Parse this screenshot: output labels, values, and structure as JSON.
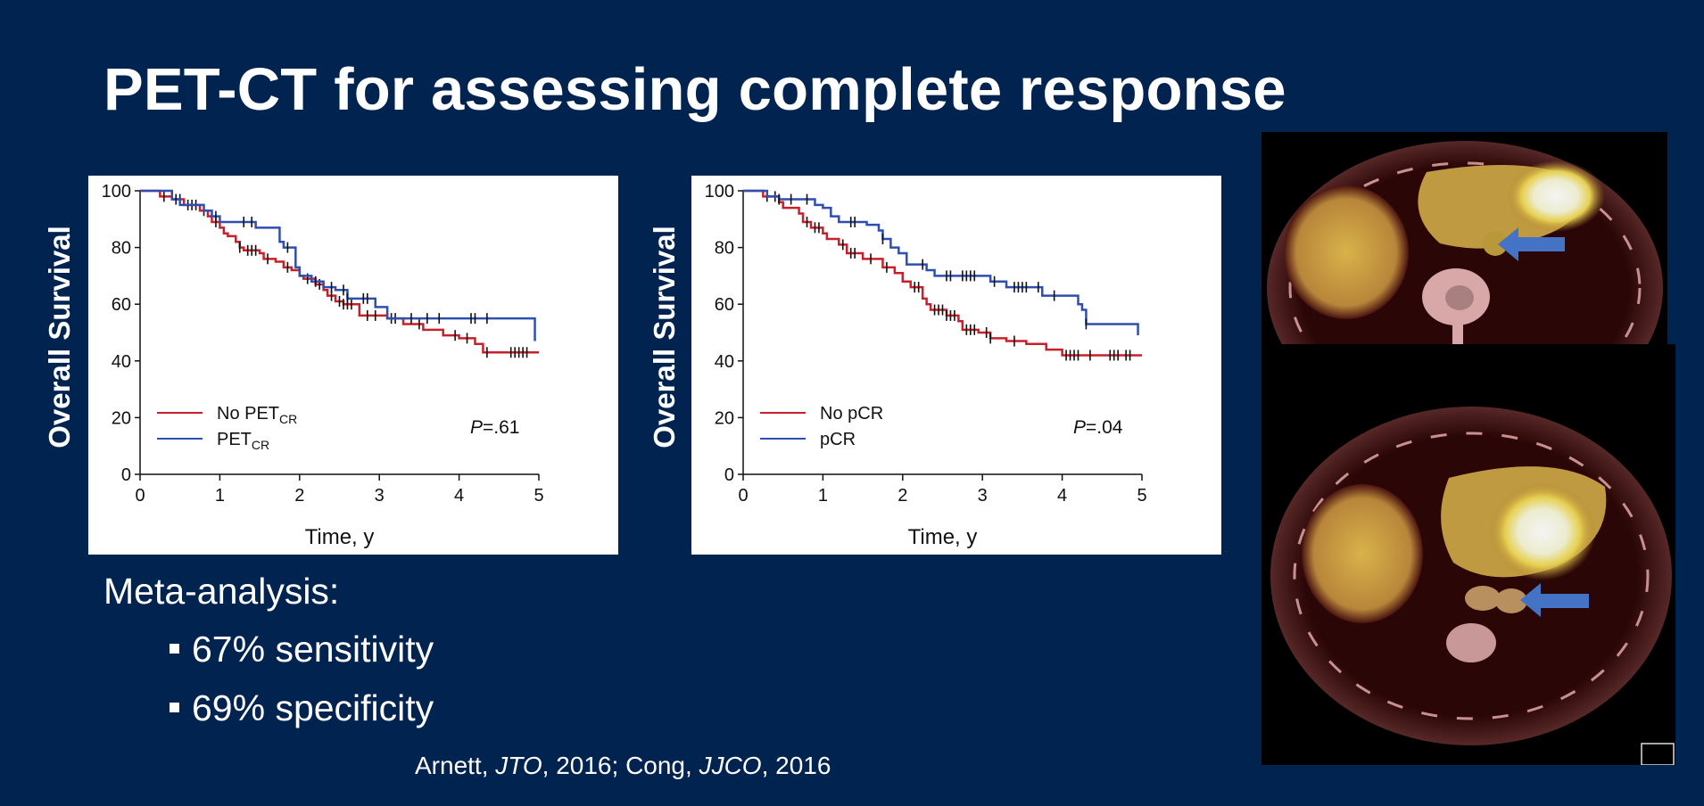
{
  "title": "PET-CT for assessing complete response",
  "colors": {
    "background": "#00234f",
    "red_series": "#c8202a",
    "blue_series": "#2f4fb0",
    "arrow": "#4472c4"
  },
  "meta": {
    "heading": "Meta-analysis:",
    "bullets": [
      "67% sensitivity",
      "69% specificity"
    ]
  },
  "citation": {
    "a1": "Arnett, ",
    "j1": "JTO",
    "a2": ", 2016; Cong, ",
    "j2": "JJCO",
    "a3": ", 2016"
  },
  "chart_data": [
    {
      "type": "line",
      "step": true,
      "ylabel": "Overall Survival",
      "xlabel": "Time, y",
      "xlim": [
        0,
        5
      ],
      "ylim": [
        0,
        100
      ],
      "xticks": [
        "0",
        "1",
        "2",
        "3",
        "4",
        "5"
      ],
      "yticks": [
        "0",
        "20",
        "40",
        "60",
        "80",
        "100"
      ],
      "p_label": "P",
      "p_value": "=.61",
      "legend_position": "bottom-left",
      "series": [
        {
          "name": "No PET",
          "sub": "CR",
          "color": "#c8202a",
          "points": [
            [
              0,
              100
            ],
            [
              0.25,
              98
            ],
            [
              0.4,
              97
            ],
            [
              0.55,
              95
            ],
            [
              0.75,
              93
            ],
            [
              0.85,
              91
            ],
            [
              0.9,
              89
            ],
            [
              1.0,
              87
            ],
            [
              1.05,
              85
            ],
            [
              1.1,
              84
            ],
            [
              1.2,
              82
            ],
            [
              1.25,
              80
            ],
            [
              1.3,
              79
            ],
            [
              1.5,
              78
            ],
            [
              1.55,
              76
            ],
            [
              1.7,
              75
            ],
            [
              1.8,
              73
            ],
            [
              1.9,
              72
            ],
            [
              2.0,
              70
            ],
            [
              2.05,
              69
            ],
            [
              2.2,
              67
            ],
            [
              2.3,
              65
            ],
            [
              2.35,
              63
            ],
            [
              2.45,
              61
            ],
            [
              2.55,
              60
            ],
            [
              2.75,
              56
            ],
            [
              3.1,
              55
            ],
            [
              3.3,
              53
            ],
            [
              3.55,
              51
            ],
            [
              3.8,
              49
            ],
            [
              4.0,
              48
            ],
            [
              4.2,
              46
            ],
            [
              4.3,
              43
            ],
            [
              5,
              43
            ]
          ],
          "censored": [
            0.3,
            0.5,
            0.6,
            0.65,
            0.7,
            0.8,
            0.95,
            1.25,
            1.35,
            1.4,
            1.45,
            1.6,
            1.85,
            2.1,
            2.25,
            2.4,
            2.5,
            2.55,
            2.6,
            2.65,
            2.85,
            2.95,
            3.15,
            3.2,
            3.5,
            3.95,
            4.1,
            4.35,
            4.65,
            4.7,
            4.75,
            4.8,
            4.85
          ]
        },
        {
          "name": "PET",
          "sub": "CR",
          "color": "#2f4fb0",
          "points": [
            [
              0,
              100
            ],
            [
              0.4,
              97
            ],
            [
              0.5,
              95
            ],
            [
              0.8,
              93
            ],
            [
              0.9,
              91
            ],
            [
              1.0,
              89
            ],
            [
              1.45,
              87
            ],
            [
              1.75,
              82
            ],
            [
              1.8,
              80
            ],
            [
              1.95,
              73
            ],
            [
              2.0,
              70
            ],
            [
              2.15,
              68
            ],
            [
              2.3,
              66
            ],
            [
              2.45,
              65
            ],
            [
              2.6,
              62
            ],
            [
              2.95,
              59
            ],
            [
              3.1,
              55
            ],
            [
              4.95,
              55
            ],
            [
              4.95,
              47
            ]
          ],
          "censored": [
            0.45,
            0.95,
            1.3,
            1.4,
            1.85,
            2.2,
            2.4,
            2.55,
            2.6,
            2.8,
            2.85,
            3.4,
            3.6,
            3.75,
            4.15,
            4.2,
            4.35
          ]
        }
      ]
    },
    {
      "type": "line",
      "step": true,
      "ylabel": "Overall Survival",
      "xlabel": "Time, y",
      "xlim": [
        0,
        5
      ],
      "ylim": [
        0,
        100
      ],
      "xticks": [
        "0",
        "1",
        "2",
        "3",
        "4",
        "5"
      ],
      "yticks": [
        "0",
        "20",
        "40",
        "60",
        "80",
        "100"
      ],
      "p_label": "P",
      "p_value": "=.04",
      "legend_position": "bottom-left",
      "series": [
        {
          "name": "No pCR",
          "sub": "",
          "color": "#c8202a",
          "points": [
            [
              0,
              100
            ],
            [
              0.25,
              98
            ],
            [
              0.45,
              96
            ],
            [
              0.5,
              94
            ],
            [
              0.7,
              92
            ],
            [
              0.75,
              89
            ],
            [
              0.85,
              87
            ],
            [
              1.0,
              85
            ],
            [
              1.05,
              83
            ],
            [
              1.2,
              81
            ],
            [
              1.3,
              78
            ],
            [
              1.5,
              76
            ],
            [
              1.75,
              73
            ],
            [
              1.9,
              71
            ],
            [
              2.0,
              68
            ],
            [
              2.1,
              66
            ],
            [
              2.25,
              62
            ],
            [
              2.3,
              60
            ],
            [
              2.35,
              58
            ],
            [
              2.55,
              56
            ],
            [
              2.7,
              54
            ],
            [
              2.75,
              51
            ],
            [
              2.95,
              50
            ],
            [
              3.1,
              48
            ],
            [
              3.3,
              47
            ],
            [
              3.55,
              46
            ],
            [
              3.8,
              44
            ],
            [
              4.0,
              42
            ],
            [
              5,
              42
            ]
          ],
          "censored": [
            0.3,
            0.4,
            0.8,
            0.9,
            0.95,
            1.25,
            1.35,
            1.4,
            1.6,
            1.8,
            2.15,
            2.2,
            2.4,
            2.45,
            2.5,
            2.55,
            2.6,
            2.65,
            2.8,
            2.85,
            2.9,
            3.05,
            3.1,
            3.4,
            4.05,
            4.1,
            4.15,
            4.2,
            4.35,
            4.6,
            4.65,
            4.7,
            4.8,
            4.85
          ]
        },
        {
          "name": "pCR",
          "sub": "",
          "color": "#2f4fb0",
          "points": [
            [
              0,
              100
            ],
            [
              0.3,
              98
            ],
            [
              0.45,
              97
            ],
            [
              0.9,
              95
            ],
            [
              1.0,
              94
            ],
            [
              1.1,
              91
            ],
            [
              1.2,
              89
            ],
            [
              1.55,
              88
            ],
            [
              1.7,
              86
            ],
            [
              1.75,
              83
            ],
            [
              1.85,
              80
            ],
            [
              1.95,
              78
            ],
            [
              2.05,
              74
            ],
            [
              2.3,
              72
            ],
            [
              2.4,
              70
            ],
            [
              3.1,
              68
            ],
            [
              3.3,
              66
            ],
            [
              3.75,
              63
            ],
            [
              4.2,
              60
            ],
            [
              4.25,
              58
            ],
            [
              4.3,
              53
            ],
            [
              4.95,
              53
            ],
            [
              4.95,
              49
            ]
          ],
          "censored": [
            0.45,
            0.6,
            0.8,
            1.35,
            1.4,
            1.75,
            2.25,
            2.55,
            2.6,
            2.75,
            2.8,
            2.85,
            2.9,
            3.15,
            3.4,
            3.45,
            3.5,
            3.55,
            3.7,
            3.9,
            4.3
          ]
        }
      ]
    }
  ]
}
